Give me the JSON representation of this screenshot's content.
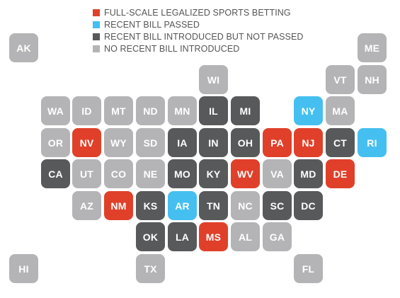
{
  "legend": [
    {
      "key": "legal",
      "label": "FULL-SCALE LEGALIZED SPORTS BETTING",
      "color": "#e0402a"
    },
    {
      "key": "passed",
      "label": "RECENT BILL PASSED",
      "color": "#45bff0"
    },
    {
      "key": "introduced",
      "label": "RECENT BILL INTRODUCED BUT NOT PASSED",
      "color": "#58595b"
    },
    {
      "key": "none",
      "label": "NO RECENT BILL INTRODUCED",
      "color": "#b4b4b6"
    }
  ],
  "states": [
    {
      "abbr": "AK",
      "status": "none",
      "col": 0,
      "row": 0
    },
    {
      "abbr": "ME",
      "status": "none",
      "col": 11,
      "row": 0
    },
    {
      "abbr": "WI",
      "status": "none",
      "col": 6,
      "row": 1
    },
    {
      "abbr": "VT",
      "status": "none",
      "col": 10,
      "row": 1
    },
    {
      "abbr": "NH",
      "status": "none",
      "col": 11,
      "row": 1
    },
    {
      "abbr": "WA",
      "status": "none",
      "col": 1,
      "row": 2
    },
    {
      "abbr": "ID",
      "status": "none",
      "col": 2,
      "row": 2
    },
    {
      "abbr": "MT",
      "status": "none",
      "col": 3,
      "row": 2
    },
    {
      "abbr": "ND",
      "status": "none",
      "col": 4,
      "row": 2
    },
    {
      "abbr": "MN",
      "status": "none",
      "col": 5,
      "row": 2
    },
    {
      "abbr": "IL",
      "status": "introduced",
      "col": 6,
      "row": 2
    },
    {
      "abbr": "MI",
      "status": "introduced",
      "col": 7,
      "row": 2
    },
    {
      "abbr": "NY",
      "status": "passed",
      "col": 9,
      "row": 2
    },
    {
      "abbr": "MA",
      "status": "none",
      "col": 10,
      "row": 2
    },
    {
      "abbr": "OR",
      "status": "none",
      "col": 1,
      "row": 3
    },
    {
      "abbr": "NV",
      "status": "legal",
      "col": 2,
      "row": 3
    },
    {
      "abbr": "WY",
      "status": "none",
      "col": 3,
      "row": 3
    },
    {
      "abbr": "SD",
      "status": "none",
      "col": 4,
      "row": 3
    },
    {
      "abbr": "IA",
      "status": "introduced",
      "col": 5,
      "row": 3
    },
    {
      "abbr": "IN",
      "status": "introduced",
      "col": 6,
      "row": 3
    },
    {
      "abbr": "OH",
      "status": "introduced",
      "col": 7,
      "row": 3
    },
    {
      "abbr": "PA",
      "status": "legal",
      "col": 8,
      "row": 3
    },
    {
      "abbr": "NJ",
      "status": "legal",
      "col": 9,
      "row": 3
    },
    {
      "abbr": "CT",
      "status": "introduced",
      "col": 10,
      "row": 3
    },
    {
      "abbr": "RI",
      "status": "passed",
      "col": 11,
      "row": 3
    },
    {
      "abbr": "CA",
      "status": "introduced",
      "col": 1,
      "row": 4
    },
    {
      "abbr": "UT",
      "status": "none",
      "col": 2,
      "row": 4
    },
    {
      "abbr": "CO",
      "status": "none",
      "col": 3,
      "row": 4
    },
    {
      "abbr": "NE",
      "status": "none",
      "col": 4,
      "row": 4
    },
    {
      "abbr": "MO",
      "status": "introduced",
      "col": 5,
      "row": 4
    },
    {
      "abbr": "KY",
      "status": "introduced",
      "col": 6,
      "row": 4
    },
    {
      "abbr": "WV",
      "status": "legal",
      "col": 7,
      "row": 4
    },
    {
      "abbr": "VA",
      "status": "none",
      "col": 8,
      "row": 4
    },
    {
      "abbr": "MD",
      "status": "introduced",
      "col": 9,
      "row": 4
    },
    {
      "abbr": "DE",
      "status": "legal",
      "col": 10,
      "row": 4
    },
    {
      "abbr": "AZ",
      "status": "none",
      "col": 2,
      "row": 5
    },
    {
      "abbr": "NM",
      "status": "legal",
      "col": 3,
      "row": 5
    },
    {
      "abbr": "KS",
      "status": "introduced",
      "col": 4,
      "row": 5
    },
    {
      "abbr": "AR",
      "status": "passed",
      "col": 5,
      "row": 5
    },
    {
      "abbr": "TN",
      "status": "introduced",
      "col": 6,
      "row": 5
    },
    {
      "abbr": "NC",
      "status": "none",
      "col": 7,
      "row": 5
    },
    {
      "abbr": "SC",
      "status": "introduced",
      "col": 8,
      "row": 5
    },
    {
      "abbr": "DC",
      "status": "introduced",
      "col": 9,
      "row": 5
    },
    {
      "abbr": "OK",
      "status": "introduced",
      "col": 4,
      "row": 6
    },
    {
      "abbr": "LA",
      "status": "introduced",
      "col": 5,
      "row": 6
    },
    {
      "abbr": "MS",
      "status": "legal",
      "col": 6,
      "row": 6
    },
    {
      "abbr": "AL",
      "status": "none",
      "col": 7,
      "row": 6
    },
    {
      "abbr": "GA",
      "status": "none",
      "col": 8,
      "row": 6
    },
    {
      "abbr": "HI",
      "status": "none",
      "col": 0,
      "row": 7
    },
    {
      "abbr": "TX",
      "status": "none",
      "col": 4,
      "row": 7
    },
    {
      "abbr": "FL",
      "status": "none",
      "col": 9,
      "row": 7
    }
  ]
}
